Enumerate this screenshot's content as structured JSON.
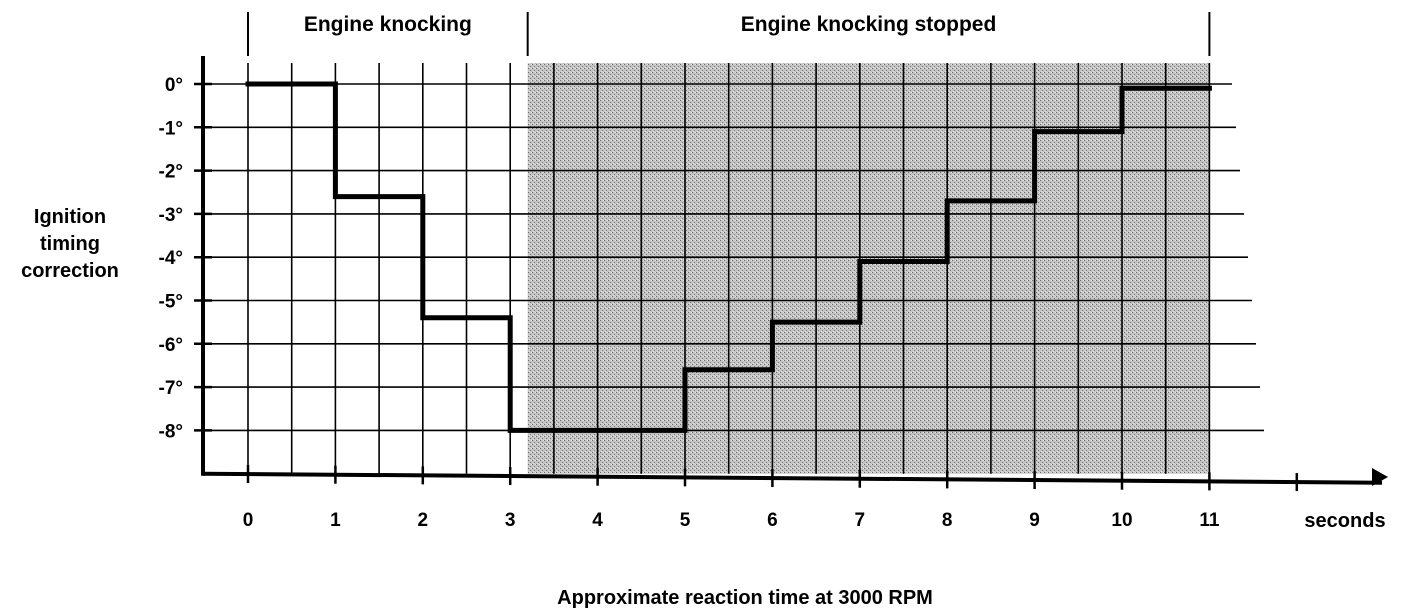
{
  "chart_data": {
    "type": "line",
    "step": true,
    "ylabel_lines": [
      "Ignition",
      "timing",
      "correction"
    ],
    "xlabel": "Approximate reaction time at 3000 RPM",
    "x_unit": "seconds",
    "x_ticks": [
      "0",
      "1",
      "2",
      "3",
      "4",
      "5",
      "6",
      "7",
      "8",
      "9",
      "10",
      "11"
    ],
    "y_ticks": [
      "0°",
      "-1°",
      "-2°",
      "-3°",
      "-4°",
      "-5°",
      "-6°",
      "-7°",
      "-8°"
    ],
    "xlim": [
      -0.5,
      13.0
    ],
    "ylim": [
      -9.0,
      0.5
    ],
    "grid": true,
    "regions": [
      {
        "label": "Engine knocking",
        "x_start": 0,
        "x_end": 3.2,
        "shaded": false
      },
      {
        "label": "Engine knocking stopped",
        "x_start": 3.2,
        "x_end": 11,
        "shaded": true
      }
    ],
    "series": [
      {
        "x": [
          0,
          1,
          1,
          2,
          2,
          3,
          3,
          5,
          5,
          6,
          6,
          7,
          7,
          8,
          8,
          9,
          9,
          10,
          10,
          11
        ],
        "y": [
          0,
          0,
          -2.6,
          -2.6,
          -5.4,
          -5.4,
          -8,
          -8,
          -6.6,
          -6.6,
          -5.5,
          -5.5,
          -4.1,
          -4.1,
          -2.7,
          -2.7,
          -1.1,
          -1.1,
          -0.1,
          -0.1
        ]
      }
    ]
  },
  "colors": {
    "shade": "#b4b4b4",
    "ink": "#000000",
    "grid": "#000000"
  }
}
